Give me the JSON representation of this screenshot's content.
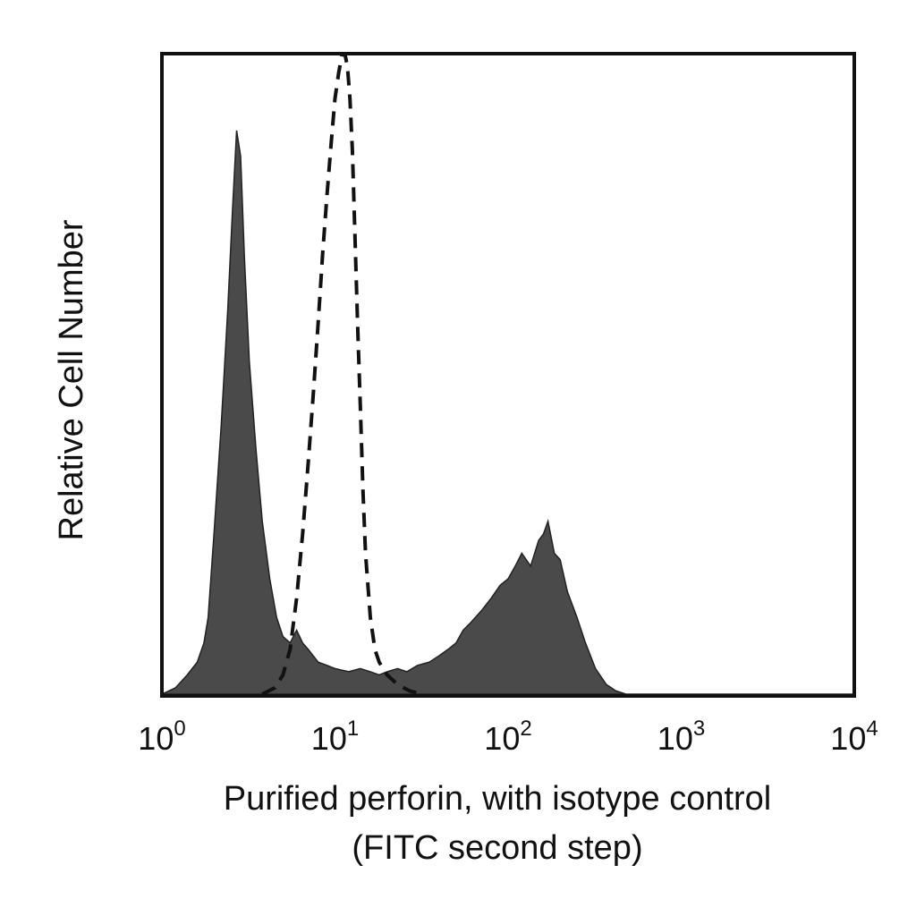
{
  "chart_data": {
    "type": "area",
    "xscale": "log",
    "xlim": [
      1,
      10000
    ],
    "ylim": [
      0,
      1
    ],
    "grid": false,
    "legend": "none",
    "xlabel_lines": [
      "Purified perforin, with isotype control",
      "(FITC second step)"
    ],
    "ylabel": "Relative Cell Number",
    "xticks": [
      {
        "value": 1,
        "base": "10",
        "exp": "0"
      },
      {
        "value": 10,
        "base": "10",
        "exp": "1"
      },
      {
        "value": 100,
        "base": "10",
        "exp": "2"
      },
      {
        "value": 1000,
        "base": "10",
        "exp": "3"
      },
      {
        "value": 10000,
        "base": "10",
        "exp": "4"
      }
    ],
    "series": [
      {
        "style": "filled",
        "color": "#4a4a4a",
        "x": [
          1.0,
          1.2,
          1.4,
          1.6,
          1.75,
          1.85,
          2.0,
          2.2,
          2.4,
          2.55,
          2.7,
          2.85,
          3.0,
          3.2,
          3.5,
          3.8,
          4.2,
          4.6,
          5.0,
          5.5,
          6.0,
          6.5,
          7.0,
          8.0,
          9.0,
          10.0,
          12.0,
          14.0,
          16.0,
          18.0,
          20.0,
          23.0,
          26.0,
          30.0,
          35.0,
          40.0,
          45.0,
          50.0,
          55.0,
          60.0,
          70.0,
          80.0,
          90.0,
          100.0,
          110.0,
          120.0,
          135.0,
          150.0,
          160.0,
          170.0,
          185.0,
          200.0,
          220.0,
          250.0,
          280.0,
          320.0,
          370.0,
          420.0,
          480.0,
          10000.0
        ],
        "y": [
          0.0,
          0.01,
          0.03,
          0.05,
          0.08,
          0.12,
          0.25,
          0.42,
          0.6,
          0.75,
          0.88,
          0.84,
          0.68,
          0.52,
          0.38,
          0.27,
          0.18,
          0.12,
          0.09,
          0.08,
          0.1,
          0.08,
          0.07,
          0.05,
          0.045,
          0.04,
          0.035,
          0.04,
          0.035,
          0.03,
          0.035,
          0.04,
          0.035,
          0.045,
          0.05,
          0.06,
          0.07,
          0.08,
          0.1,
          0.11,
          0.13,
          0.15,
          0.17,
          0.18,
          0.2,
          0.22,
          0.2,
          0.24,
          0.25,
          0.27,
          0.22,
          0.21,
          0.16,
          0.12,
          0.08,
          0.04,
          0.015,
          0.005,
          0.0,
          0.0
        ]
      },
      {
        "style": "dashed",
        "color": "#111111",
        "x": [
          3.8,
          4.5,
          5.0,
          5.5,
          6.0,
          6.5,
          7.0,
          7.5,
          8.0,
          8.5,
          9.0,
          9.5,
          10.0,
          10.5,
          11.0,
          11.4,
          11.8,
          12.2,
          12.6,
          13.0,
          13.5,
          14.0,
          14.5,
          15.0,
          16.0,
          17.0,
          18.0,
          20.0,
          23.0,
          27.0,
          32.0
        ],
        "y": [
          0.0,
          0.01,
          0.03,
          0.07,
          0.15,
          0.25,
          0.36,
          0.47,
          0.58,
          0.69,
          0.78,
          0.86,
          0.93,
          0.97,
          1.0,
          1.0,
          0.98,
          0.93,
          0.85,
          0.73,
          0.58,
          0.45,
          0.32,
          0.22,
          0.12,
          0.07,
          0.05,
          0.03,
          0.015,
          0.005,
          0.0
        ]
      }
    ]
  }
}
